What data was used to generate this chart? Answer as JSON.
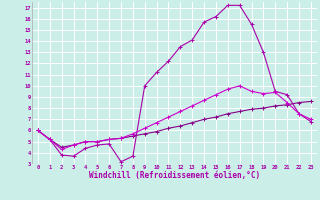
{
  "xlabel": "Windchill (Refroidissement éolien,°C)",
  "bg_color": "#cceee8",
  "grid_color": "#ffffff",
  "line_color": "#aa00aa",
  "line_color2": "#880088",
  "line_color3": "#cc00cc",
  "xlim": [
    -0.5,
    23.5
  ],
  "ylim": [
    3,
    17.5
  ],
  "xticks": [
    0,
    1,
    2,
    3,
    4,
    5,
    6,
    7,
    8,
    9,
    10,
    11,
    12,
    13,
    14,
    15,
    16,
    17,
    18,
    19,
    20,
    21,
    22,
    23
  ],
  "yticks": [
    3,
    4,
    5,
    6,
    7,
    8,
    9,
    10,
    11,
    12,
    13,
    14,
    15,
    16,
    17
  ],
  "line1_x": [
    0,
    1,
    2,
    3,
    4,
    5,
    6,
    7,
    8,
    9,
    10,
    11,
    12,
    13,
    14,
    15,
    16,
    17,
    18,
    19,
    20,
    21,
    22,
    23
  ],
  "line1_y": [
    6.0,
    5.2,
    3.8,
    3.7,
    4.4,
    4.7,
    4.8,
    3.2,
    3.7,
    10.0,
    11.2,
    12.2,
    13.5,
    14.1,
    15.7,
    16.2,
    17.2,
    17.2,
    15.5,
    13.0,
    9.5,
    9.2,
    7.5,
    6.8
  ],
  "line2_x": [
    0,
    1,
    2,
    3,
    4,
    5,
    6,
    7,
    8,
    9,
    10,
    11,
    12,
    13,
    14,
    15,
    16,
    17,
    18,
    19,
    20,
    21,
    22,
    23
  ],
  "line2_y": [
    6.0,
    5.2,
    4.5,
    4.7,
    5.0,
    5.0,
    5.2,
    5.3,
    5.5,
    5.7,
    5.9,
    6.2,
    6.4,
    6.7,
    7.0,
    7.2,
    7.5,
    7.7,
    7.9,
    8.0,
    8.2,
    8.3,
    8.5,
    8.6
  ],
  "line3_x": [
    0,
    1,
    2,
    3,
    4,
    5,
    6,
    7,
    8,
    9,
    10,
    11,
    12,
    13,
    14,
    15,
    16,
    17,
    18,
    19,
    20,
    21,
    22,
    23
  ],
  "line3_y": [
    6.0,
    5.2,
    4.3,
    4.7,
    5.0,
    5.0,
    5.2,
    5.3,
    5.7,
    6.2,
    6.7,
    7.2,
    7.7,
    8.2,
    8.7,
    9.2,
    9.7,
    10.0,
    9.5,
    9.3,
    9.4,
    8.5,
    7.5,
    7.0
  ],
  "xlabel_fontsize": 5.5,
  "tick_fontsize": 4.0
}
